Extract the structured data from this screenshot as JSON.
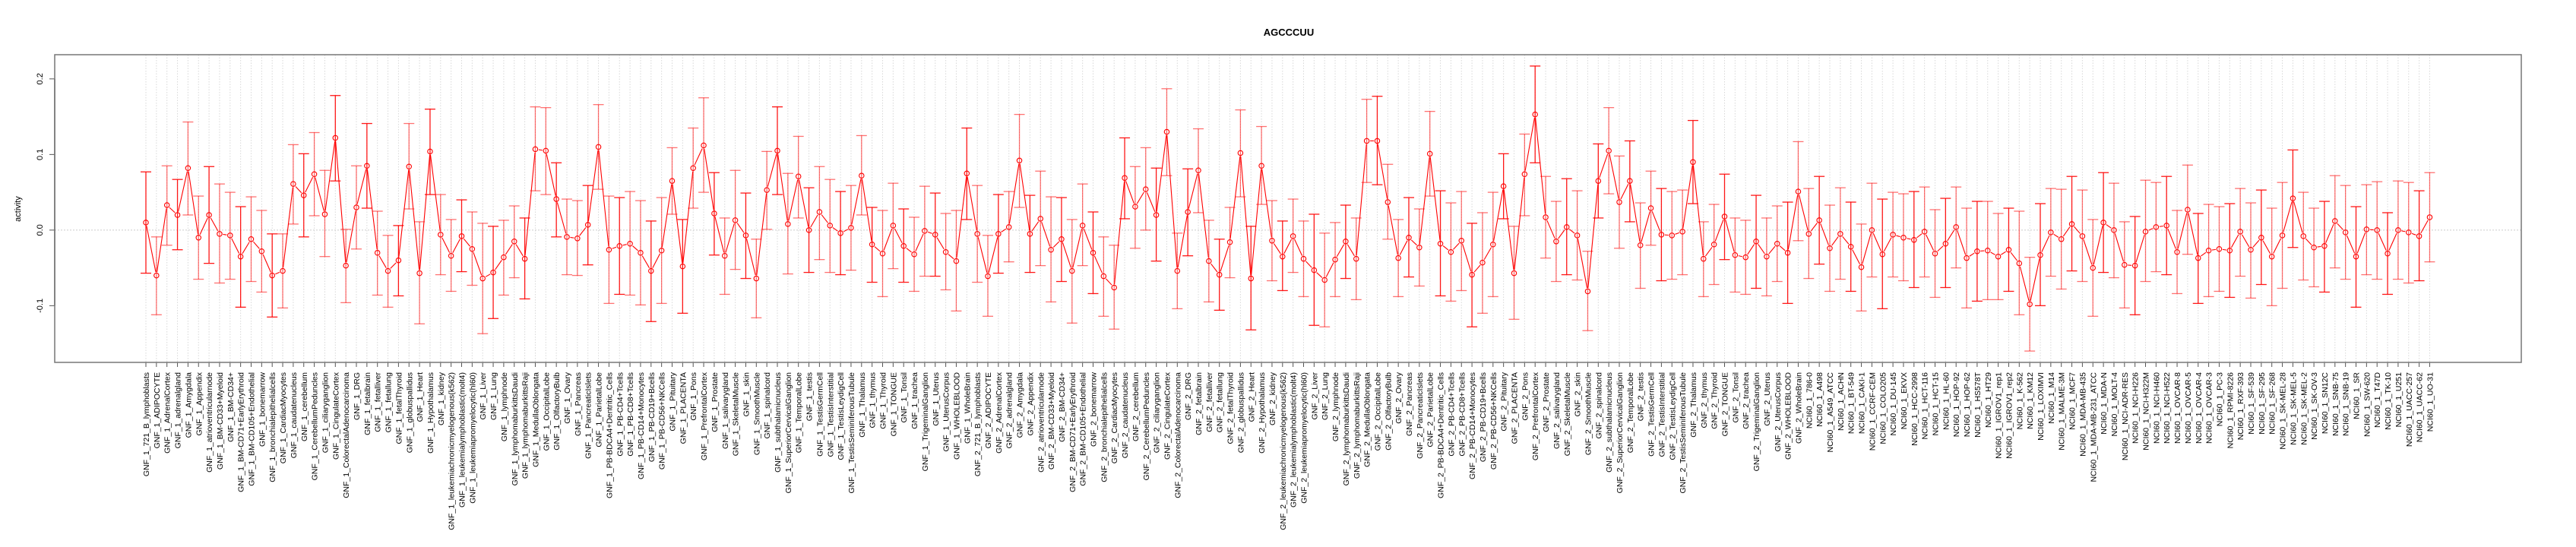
{
  "chart_data": {
    "type": "line",
    "title": "AGCCCUU",
    "xlabel": "",
    "ylabel": "activity",
    "ylim": [
      -0.175,
      0.232
    ],
    "yticks": [
      -0.1,
      0.0,
      0.1,
      0.2
    ],
    "ytick_labels": [
      "-0.1",
      "0.0",
      "0.1",
      "0.2"
    ],
    "grid": true,
    "error_bars": true,
    "series_color": "#ff0000",
    "categories": [
      "GNF_1_721_B_lymphoblasts",
      "GNF_1_ADIPOCYTE",
      "GNF_1_AdrenalCortex",
      "GNF_1_adrenalgland",
      "GNF_1_Amygdala",
      "GNF_1_Appendix",
      "GNF_1_atrioventricularnode",
      "GNF_1_BM-CD33+Myeloid",
      "GNF_1_BM-CD34+",
      "GNF_1_BM-CD71+EarlyErythroid",
      "GNF_1_BM-CD105+Endothelial",
      "GNF_1_bonemarrow",
      "GNF_1_bronchialepithelialcells",
      "GNF_1_CardiacMyocytes",
      "GNF_1_caudatenucleus",
      "GNF_1_cerebellum",
      "GNF_1_CerebellumPeduncles",
      "GNF_1_ciliaryganglion",
      "GNF_1_CingulateCortex",
      "GNF_1_ColorectalAdenocarcinoma",
      "GNF_1_DRG",
      "GNF_1_fetalbrain",
      "GNF_1_fetalliver",
      "GNF_1_fetallung",
      "GNF_1_fetalThyroid",
      "GNF_1_globuspallidus",
      "GNF_1_Heart",
      "GNF_1_Hypothalamus",
      "GNF_1_kidney",
      "GNF_1_leukemiachronicmyelogenous(k562)",
      "GNF_1_leukemialymphoblastic(molt4)",
      "GNF_1_leukemiapromyelocytic(hl60)",
      "GNF_1_Liver",
      "GNF_1_Lung",
      "GNF_1_lymphnode",
      "GNF_1_lymphomaburkittsDaudi",
      "GNF_1_lymphomaburkittsRaji",
      "GNF_1_MedullaOblongata",
      "GNF_1_OccipitalLobe",
      "GNF_1_OlfactoryBulb",
      "GNF_1_Ovary",
      "GNF_1_Pancreas",
      "GNF_1_PancreaticIslets",
      "GNF_1_ParietalLobe",
      "GNF_1_PB-BDCA4+Dentritic_Cells",
      "GNF_1_PB-CD4+Tcells",
      "GNF_1_PB-CD8+Tcells",
      "GNF_1_PB-CD14+Monocytes",
      "GNF_1_PB-CD19+Bcells",
      "GNF_1_PB-CD56+NKCells",
      "GNF_1_Pituitary",
      "GNF_1_PLACENTA",
      "GNF_1_Pons",
      "GNF_1_PrefrontalCortex",
      "GNF_1_Prostate",
      "GNF_1_salivarygland",
      "GNF_1_SkeletalMuscle",
      "GNF_1_skin",
      "GNF_1_SmoothMuscle",
      "GNF_1_spinalcord",
      "GNF_1_subthalamicnucleus",
      "GNF_1_SuperiorCervicalGanglion",
      "GNF_1_TemporalLobe",
      "GNF_1_testis",
      "GNF_1_TestisGermCell",
      "GNF_1_TestisInterstitial",
      "GNF_1_TestisLeydigCell",
      "GNF_1_TestisSeminiferousTubule",
      "GNF_1_Thalamus",
      "GNF_1_thymus",
      "GNF_1_Thyroid",
      "GNF_1_TONGUE",
      "GNF_1_Tonsil",
      "GNF_1_trachea",
      "GNF_1_TrigeminalGanglion",
      "GNF_1_Uterus",
      "GNF_1_UterusCorpus",
      "GNF_1_WHOLEBLOOD",
      "GNF_1_WholeBrain",
      "GNF_2_721_B_lymphoblasts",
      "GNF_2_ADIPOCYTE",
      "GNF_2_AdrenalCortex",
      "GNF_2_adrenalgland",
      "GNF_2_Amygdala",
      "GNF_2_Appendix",
      "GNF_2_atrioventricularnode",
      "GNF_2_BM-CD33+Myeloid",
      "GNF_2_BM-CD34+",
      "GNF_2_BM-CD71+EarlyErythroid",
      "GNF_2_BM-CD105+Endothelial",
      "GNF_2_bonemarrow",
      "GNF_2_bronchialepithelialcells",
      "GNF_2_CardiacMyocytes",
      "GNF_2_caudatenucleus",
      "GNF_2_cerebellum",
      "GNF_2_CerebellumPeduncles",
      "GNF_2_ciliaryganglion",
      "GNF_2_CingulateCortex",
      "GNF_2_ColorectalAdenocarcinoma",
      "GNF_2_DRG",
      "GNF_2_fetalbrain",
      "GNF_2_fetalliver",
      "GNF_2_fetallung",
      "GNF_2_fetalThyroid",
      "GNF_2_globuspallidus",
      "GNF_2_Heart",
      "GNF_2_Hypothalamus",
      "GNF_2_kidney",
      "GNF_2_leukemiachronicmyelogenous(k562)",
      "GNF_2_leukemialymphoblastic(molt4)",
      "GNF_2_leukemiapromyelocytic(hl60)",
      "GNF_2_Liver",
      "GNF_2_Lung",
      "GNF_2_lymphnode",
      "GNF_2_lymphomaburkittsDaudi",
      "GNF_2_lymphomaburkittsRaji",
      "GNF_2_MedullaOblongata",
      "GNF_2_OccipitalLobe",
      "GNF_2_OlfactoryBulb",
      "GNF_2_Ovary",
      "GNF_2_Pancreas",
      "GNF_2_PancreaticIslets",
      "GNF_2_ParietalLobe",
      "GNF_2_PB-BDCA4+Dentritic_Cells",
      "GNF_2_PB-CD4+Tcells",
      "GNF_2_PB-CD8+Tcells",
      "GNF_2_PB-CD14+Monocytes",
      "GNF_2_PB-CD19+Bcells",
      "GNF_2_PB-CD56+NKCells",
      "GNF_2_Pituitary",
      "GNF_2_PLACENTA",
      "GNF_2_Pons",
      "GNF_2_PrefrontalCortex",
      "GNF_2_Prostate",
      "GNF_2_salivarygland",
      "GNF_2_SkeletalMuscle",
      "GNF_2_skin",
      "GNF_2_SmoothMuscle",
      "GNF_2_spinalcord",
      "GNF_2_subthalamicnucleus",
      "GNF_2_SuperiorCervicalGanglion",
      "GNF_2_TemporalLobe",
      "GNF_2_testis",
      "GNF_2_TestisGermCell",
      "GNF_2_TestisInterstitial",
      "GNF_2_TestisLeydigCell",
      "GNF_2_TestisSeminiferousTubule",
      "GNF_2_Thalamus",
      "GNF_2_thymus",
      "GNF_2_Thyroid",
      "GNF_2_TONGUE",
      "GNF_2_Tonsil",
      "GNF_2_trachea",
      "GNF_2_TrigeminalGanglion",
      "GNF_2_Uterus",
      "GNF_2_UterusCorpus",
      "GNF_2_WHOLEBLOOD",
      "GNF_2_WholeBrain",
      "NCI60_1_786-0",
      "NCI60_1_A498",
      "NCI60_1_A549_ATCC",
      "NCI60_1_ACHN",
      "NCI60_1_BT-549",
      "NCI60_1_CAKI-1",
      "NCI60_1_CCRF-CEM",
      "NCI60_1_COLO205",
      "NCI60_1_DU-145",
      "NCI60_1_EKVX",
      "NCI60_1_HCC-2998",
      "NCI60_1_HCT-116",
      "NCI60_1_HCT-15",
      "NCI60_1_HL-60",
      "NCI60_1_HOP-92",
      "NCI60_1_HOP-62",
      "NCI60_1_HS578T",
      "NCI60_1_HT29",
      "NCI60_1_IGROV1_rep1",
      "NCI60_1_IGROV1_rep2",
      "NCI60_1_K-562",
      "NCI60_1_KM12",
      "NCI60_1_LOXIMVI",
      "NCI60_1_M14",
      "NCI60_1_MALME-3M",
      "NCI60_1_MCF7",
      "NCI60_1_MDA-MB-435",
      "NCI60_1_MDA-MB-231_ATCC",
      "NCI60_1_MDA-N",
      "NCI60_1_MOLT-4",
      "NCI60_1_NCI-ADR-RES",
      "NCI60_1_NCI-H226",
      "NCI60_1_NCI-H322M",
      "NCI60_1_NCI-H460",
      "NCI60_1_NCI-H522",
      "NCI60_1_OVCAR-8",
      "NCI60_1_OVCAR-5",
      "NCI60_1_OVCAR-4",
      "NCI60_1_OVCAR-3",
      "NCI60_1_PC-3",
      "NCI60_1_RPMI-8226",
      "NCI60_1_RXF-393",
      "NCI60_1_SF-539",
      "NCI60_1_SF-295",
      "NCI60_1_SF-268",
      "NCI60_1_SK-MEL-28",
      "NCI60_1_SK-MEL-5",
      "NCI60_1_SK-MEL-2",
      "NCI60_1_SK-OV-3",
      "NCI60_1_SN12C",
      "NCI60_1_SNB-75",
      "NCI60_1_SNB-19",
      "NCI60_1_SR",
      "NCI60_1_SW-620",
      "NCI60_1_T47D",
      "NCI60_1_TK-10",
      "NCI60_1_U251",
      "NCI60_1_UACC-257",
      "NCI60_1_UACC-62",
      "NCI60_1_UO-31"
    ],
    "values": [
      0.01,
      -0.06,
      0.033,
      0.02,
      0.082,
      -0.01,
      0.02,
      -0.005,
      -0.007,
      -0.035,
      -0.012,
      -0.028,
      -0.06,
      -0.054,
      0.061,
      0.046,
      0.074,
      0.021,
      0.122,
      -0.047,
      0.03,
      0.085,
      -0.03,
      -0.054,
      -0.04,
      0.084,
      -0.057,
      0.104,
      -0.006,
      -0.034,
      -0.008,
      -0.025,
      -0.064,
      -0.056,
      -0.036,
      -0.015,
      -0.038,
      0.107,
      0.105,
      0.041,
      -0.009,
      -0.011,
      0.007,
      0.11,
      -0.026,
      -0.021,
      -0.018,
      -0.03,
      -0.054,
      -0.027,
      0.065,
      -0.048,
      0.082,
      0.112,
      0.022,
      -0.034,
      0.013,
      -0.007,
      -0.064,
      0.053,
      0.105,
      0.008,
      0.071,
      0.0,
      0.024,
      0.006,
      -0.004,
      0.003,
      0.072,
      -0.019,
      -0.031,
      0.006,
      -0.021,
      -0.032,
      -0.001,
      -0.006,
      -0.029,
      -0.041,
      0.075,
      -0.005,
      -0.061,
      -0.005,
      0.004,
      0.092,
      -0.005,
      0.015,
      -0.026,
      -0.012,
      -0.054,
      0.006,
      -0.03,
      -0.061,
      -0.076,
      0.069,
      0.031,
      0.054,
      0.02,
      0.13,
      -0.054,
      0.024,
      0.079,
      -0.041,
      -0.059,
      -0.016,
      0.102,
      -0.064,
      0.085,
      -0.014,
      -0.035,
      -0.008,
      -0.038,
      -0.053,
      -0.066,
      -0.039,
      -0.015,
      -0.038,
      0.118,
      0.118,
      0.037,
      -0.037,
      -0.01,
      -0.023,
      0.101,
      -0.018,
      -0.029,
      -0.014,
      -0.059,
      -0.043,
      -0.019,
      0.058,
      -0.057,
      0.074,
      0.153,
      0.017,
      -0.015,
      0.004,
      -0.007,
      -0.081,
      0.065,
      0.105,
      0.037,
      0.065,
      -0.02,
      0.029,
      -0.006,
      -0.007,
      -0.002,
      0.09,
      -0.038,
      -0.019,
      0.018,
      -0.033,
      -0.036,
      -0.015,
      -0.035,
      -0.018,
      -0.03,
      0.051,
      -0.005,
      0.013,
      -0.024,
      -0.005,
      -0.022,
      -0.049,
      0.0,
      -0.032,
      -0.006,
      -0.01,
      -0.013,
      -0.002,
      -0.031,
      -0.018,
      0.004,
      -0.037,
      -0.028,
      -0.027,
      -0.035,
      -0.026,
      -0.044,
      -0.098,
      -0.033,
      -0.003,
      -0.012,
      0.008,
      -0.008,
      -0.05,
      0.01,
      0.0,
      -0.046,
      -0.047,
      -0.002,
      0.004,
      0.006,
      -0.029,
      0.027,
      -0.037,
      -0.027,
      -0.025,
      -0.027,
      -0.002,
      -0.026,
      -0.01,
      -0.035,
      -0.007,
      0.042,
      -0.008,
      -0.023,
      -0.021,
      0.012,
      -0.003,
      -0.035,
      0.001,
      0.0,
      -0.031,
      0.0,
      -0.003,
      -0.008,
      0.017
    ],
    "upper": [
      0.077,
      -0.009,
      0.085,
      0.067,
      0.143,
      0.045,
      0.084,
      0.061,
      0.05,
      0.031,
      0.044,
      0.026,
      -0.005,
      -0.005,
      0.113,
      0.101,
      0.129,
      0.079,
      0.178,
      0.001,
      0.085,
      0.141,
      0.025,
      -0.007,
      0.006,
      0.141,
      0.011,
      0.16,
      0.047,
      0.014,
      0.04,
      0.024,
      0.009,
      0.005,
      0.013,
      0.032,
      0.016,
      0.163,
      0.162,
      0.089,
      0.041,
      0.039,
      0.059,
      0.166,
      0.045,
      0.043,
      0.051,
      0.039,
      0.012,
      0.043,
      0.109,
      0.014,
      0.135,
      0.175,
      0.076,
      0.016,
      0.079,
      0.049,
      -0.012,
      0.104,
      0.163,
      0.075,
      0.124,
      0.056,
      0.084,
      0.067,
      0.051,
      0.059,
      0.125,
      0.03,
      0.026,
      0.062,
      0.028,
      0.017,
      0.058,
      0.049,
      0.022,
      0.026,
      0.135,
      0.059,
      -0.007,
      0.047,
      0.051,
      0.153,
      0.046,
      0.078,
      0.044,
      0.043,
      0.014,
      0.061,
      0.024,
      -0.009,
      -0.02,
      0.122,
      0.084,
      0.109,
      0.082,
      0.187,
      -0.004,
      0.081,
      0.134,
      0.013,
      -0.012,
      0.03,
      0.159,
      0.005,
      0.137,
      0.039,
      0.012,
      0.041,
      0.012,
      0.021,
      -0.004,
      0.01,
      0.033,
      0.016,
      0.173,
      0.177,
      0.087,
      0.014,
      0.043,
      0.028,
      0.157,
      0.052,
      0.036,
      0.051,
      0.009,
      0.023,
      0.05,
      0.101,
      0.005,
      0.127,
      0.217,
      0.071,
      0.038,
      0.068,
      0.052,
      -0.028,
      0.114,
      0.162,
      0.098,
      0.118,
      0.036,
      0.078,
      0.055,
      0.051,
      0.053,
      0.145,
      0.011,
      0.034,
      0.074,
      0.016,
      0.013,
      0.046,
      0.016,
      0.032,
      0.037,
      0.117,
      0.055,
      0.071,
      0.033,
      0.056,
      0.037,
      0.008,
      0.062,
      0.041,
      0.05,
      0.048,
      0.051,
      0.057,
      0.027,
      0.042,
      0.057,
      0.029,
      0.038,
      0.038,
      0.022,
      0.029,
      0.025,
      -0.036,
      0.035,
      0.055,
      0.054,
      0.071,
      0.053,
      0.014,
      0.076,
      0.062,
      0.011,
      0.018,
      0.066,
      0.063,
      0.071,
      0.026,
      0.086,
      0.022,
      0.034,
      0.031,
      0.035,
      0.055,
      0.036,
      0.053,
      0.029,
      0.063,
      0.106,
      0.05,
      0.029,
      0.038,
      0.072,
      0.059,
      0.031,
      0.06,
      0.064,
      0.023,
      0.065,
      0.063,
      0.052,
      0.076
    ],
    "lower": [
      -0.057,
      -0.112,
      -0.02,
      -0.026,
      0.02,
      -0.065,
      -0.044,
      -0.07,
      -0.065,
      -0.102,
      -0.068,
      -0.082,
      -0.115,
      -0.103,
      0.008,
      -0.009,
      0.019,
      -0.035,
      0.065,
      -0.096,
      -0.025,
      0.029,
      -0.086,
      -0.102,
      -0.087,
      0.028,
      -0.124,
      0.047,
      -0.059,
      -0.081,
      -0.055,
      -0.073,
      -0.137,
      -0.117,
      -0.086,
      -0.063,
      -0.091,
      0.052,
      0.047,
      -0.009,
      -0.059,
      -0.06,
      -0.046,
      0.054,
      -0.097,
      -0.085,
      -0.086,
      -0.099,
      -0.121,
      -0.097,
      0.021,
      -0.11,
      0.029,
      0.05,
      -0.033,
      -0.085,
      -0.052,
      -0.064,
      -0.116,
      0.001,
      0.047,
      -0.058,
      0.016,
      -0.056,
      -0.039,
      -0.056,
      -0.059,
      -0.053,
      0.02,
      -0.069,
      -0.088,
      -0.051,
      -0.069,
      -0.081,
      -0.061,
      -0.061,
      -0.079,
      -0.107,
      0.014,
      -0.069,
      -0.114,
      -0.057,
      -0.042,
      0.03,
      -0.056,
      -0.047,
      -0.095,
      -0.068,
      -0.123,
      -0.047,
      -0.084,
      -0.114,
      -0.131,
      0.015,
      -0.024,
      0.0,
      -0.041,
      0.072,
      -0.104,
      -0.034,
      0.023,
      -0.095,
      -0.106,
      -0.063,
      0.044,
      -0.132,
      0.034,
      -0.067,
      -0.08,
      -0.056,
      -0.088,
      -0.126,
      -0.128,
      -0.088,
      -0.064,
      -0.092,
      0.063,
      0.06,
      -0.012,
      -0.088,
      -0.062,
      -0.074,
      0.045,
      -0.087,
      -0.094,
      -0.08,
      -0.128,
      -0.11,
      -0.088,
      0.015,
      -0.118,
      0.019,
      0.089,
      -0.037,
      -0.068,
      -0.059,
      -0.066,
      -0.133,
      0.016,
      0.048,
      -0.024,
      0.011,
      -0.077,
      -0.02,
      -0.067,
      -0.065,
      -0.059,
      0.035,
      -0.088,
      -0.072,
      -0.039,
      -0.082,
      -0.085,
      -0.077,
      -0.087,
      -0.068,
      -0.097,
      -0.014,
      -0.064,
      -0.045,
      -0.081,
      -0.065,
      -0.081,
      -0.107,
      -0.062,
      -0.104,
      -0.062,
      -0.067,
      -0.076,
      -0.062,
      -0.089,
      -0.076,
      -0.05,
      -0.103,
      -0.094,
      -0.092,
      -0.092,
      -0.081,
      -0.112,
      -0.16,
      -0.1,
      -0.061,
      -0.078,
      -0.054,
      -0.068,
      -0.114,
      -0.056,
      -0.063,
      -0.103,
      -0.112,
      -0.068,
      -0.055,
      -0.059,
      -0.084,
      -0.032,
      -0.097,
      -0.088,
      -0.081,
      -0.089,
      -0.061,
      -0.09,
      -0.072,
      -0.1,
      -0.077,
      -0.023,
      -0.066,
      -0.075,
      -0.082,
      -0.05,
      -0.065,
      -0.102,
      -0.059,
      -0.065,
      -0.085,
      -0.065,
      -0.07,
      -0.067,
      -0.042
    ]
  }
}
